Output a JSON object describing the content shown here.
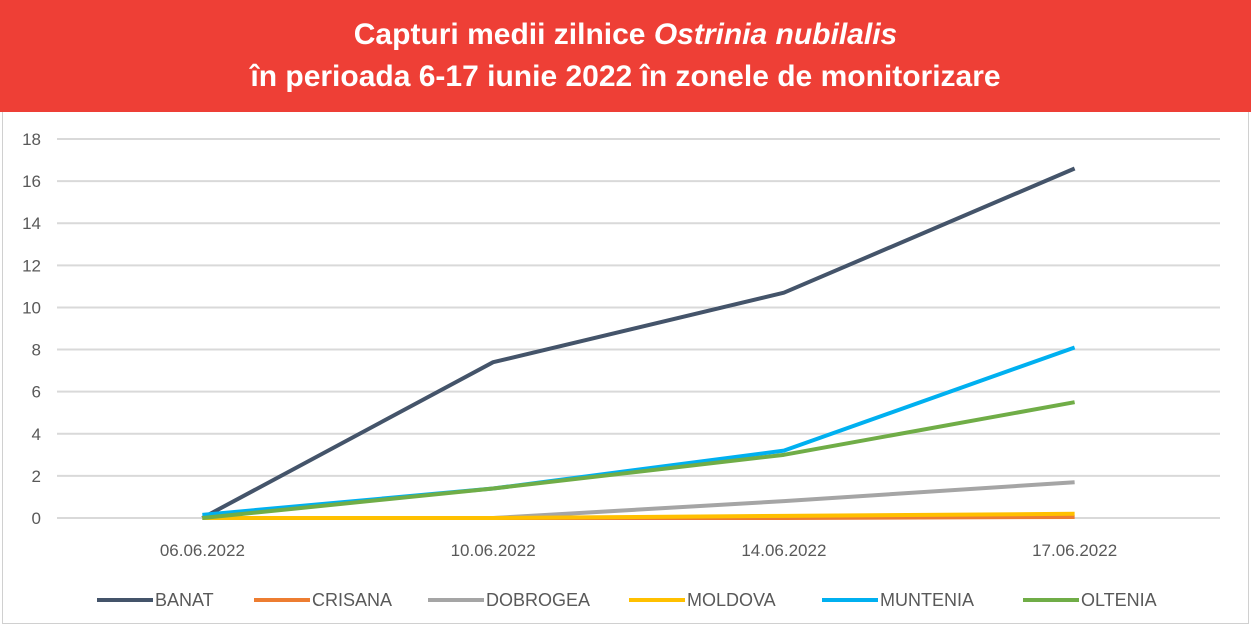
{
  "header": {
    "title_line1_prefix": "Capturi medii zilnice ",
    "title_line1_italic": "Ostrinia nubilalis",
    "title_line2": "în perioada 6-17 iunie 2022 în zonele de monitorizare"
  },
  "chart_data": {
    "type": "line",
    "title": "Capturi medii zilnice Ostrinia nubilalis în perioada 6-17 iunie 2022 în zonele de monitorizare",
    "categories": [
      "06.06.2022",
      "10.06.2022",
      "14.06.2022",
      "17.06.2022"
    ],
    "ylim": [
      0,
      18
    ],
    "yticks": [
      0,
      2,
      4,
      6,
      8,
      10,
      12,
      14,
      16,
      18
    ],
    "grid": true,
    "legend": "bottom",
    "series": [
      {
        "name": "BANAT",
        "color": "#44546a",
        "values": [
          0,
          7.4,
          10.7,
          16.6
        ]
      },
      {
        "name": "CRISANA",
        "color": "#ed7d31",
        "values": [
          0,
          0,
          0,
          0.05
        ]
      },
      {
        "name": "DOBROGEA",
        "color": "#a5a5a5",
        "values": [
          0,
          0,
          0.8,
          1.7
        ]
      },
      {
        "name": "MOLDOVA",
        "color": "#ffc000",
        "values": [
          0,
          0,
          0.1,
          0.2
        ]
      },
      {
        "name": "MUNTENIA",
        "color": "#00b0f0",
        "values": [
          0.15,
          1.4,
          3.2,
          8.1
        ]
      },
      {
        "name": "OLTENIA",
        "color": "#70ad47",
        "values": [
          0,
          1.4,
          3.0,
          5.5
        ]
      }
    ]
  }
}
